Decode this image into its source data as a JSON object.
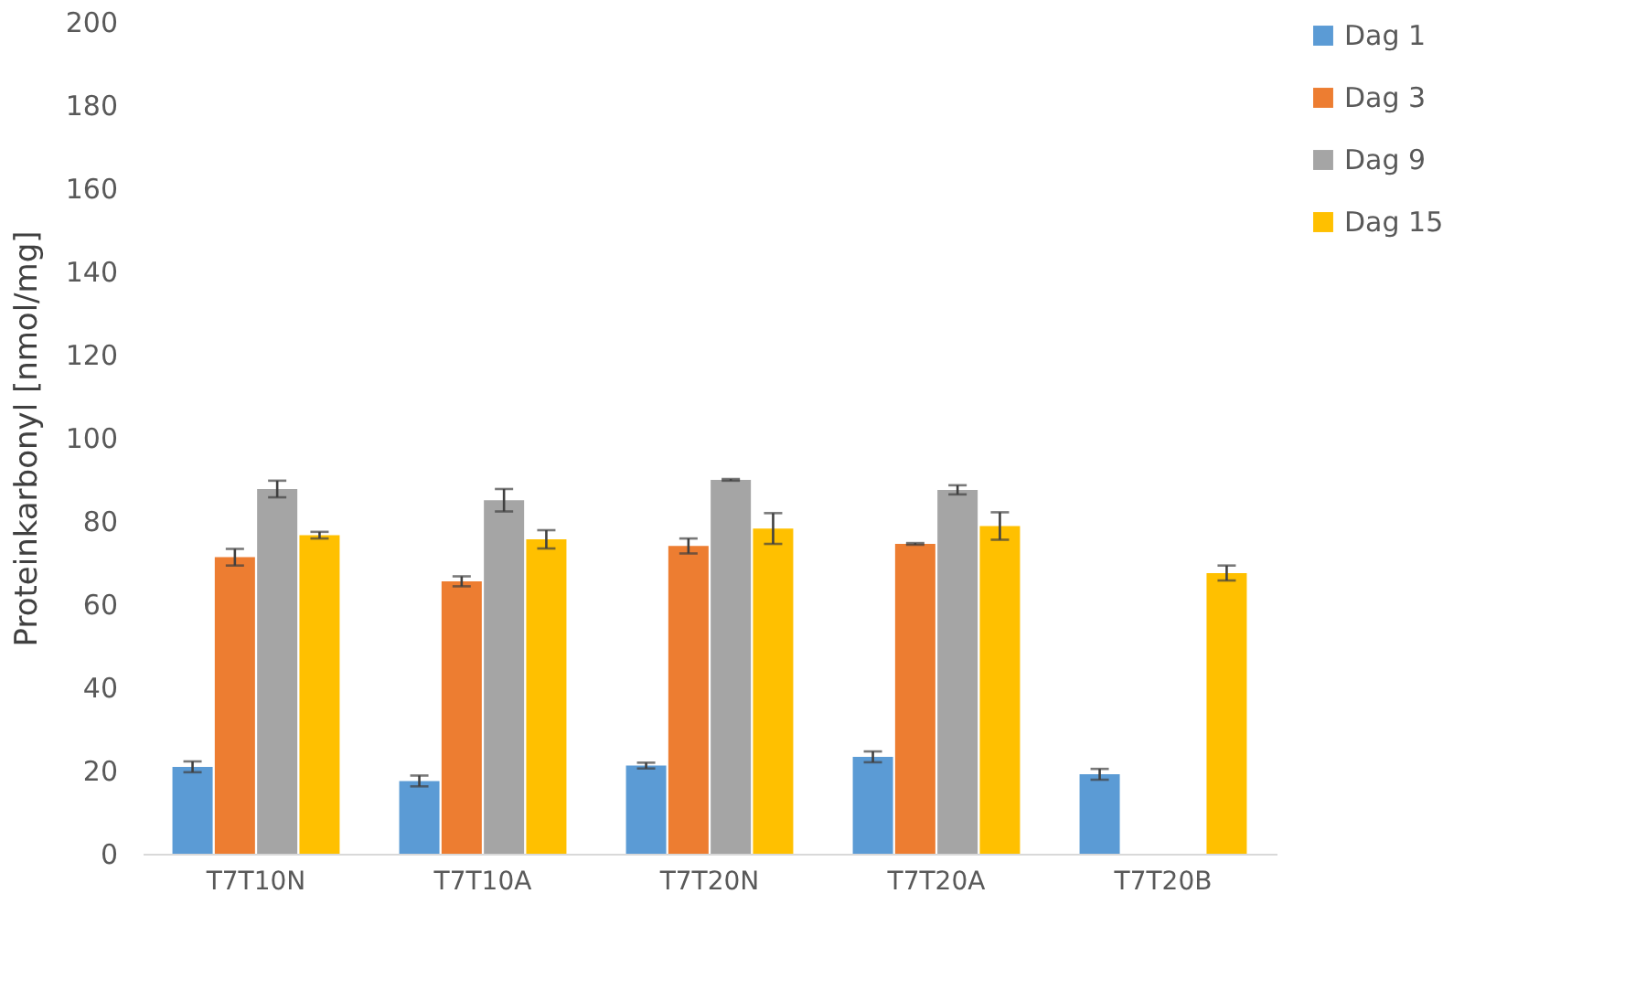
{
  "chart_data": {
    "type": "bar",
    "ylabel": "Proteinkarbonyl [nmol/mg]",
    "categories": [
      "T7T10N",
      "T7T10A",
      "T7T20N",
      "T7T20A",
      "T7T20B"
    ],
    "series": [
      {
        "name": "Dag 1",
        "color": "#5b9bd5",
        "values": [
          20.9,
          17.5,
          21.2,
          23.3,
          19.1
        ],
        "errors": [
          1.3,
          1.3,
          0.7,
          1.3,
          1.3
        ]
      },
      {
        "name": "Dag 3",
        "color": "#ed7d31",
        "values": [
          71.3,
          65.5,
          74,
          74.5,
          null
        ],
        "errors": [
          2,
          1.2,
          1.8,
          0.2,
          null
        ]
      },
      {
        "name": "Dag 9",
        "color": "#a5a5a5",
        "values": [
          87.7,
          85,
          89.9,
          87.5,
          null
        ],
        "errors": [
          2,
          2.7,
          0.2,
          1.1,
          null
        ]
      },
      {
        "name": "Dag 15",
        "color": "#ffc000",
        "values": [
          76.6,
          75.6,
          78.2,
          78.8,
          67.5
        ],
        "errors": [
          0.8,
          2.2,
          3.7,
          3.3,
          1.8
        ]
      }
    ],
    "ylim": [
      0,
      200
    ],
    "yticks": [
      0,
      20,
      40,
      60,
      80,
      100,
      120,
      140,
      160,
      180,
      200
    ],
    "grid": false,
    "legend": "right"
  }
}
